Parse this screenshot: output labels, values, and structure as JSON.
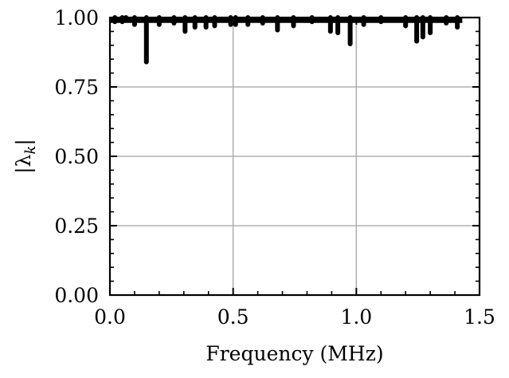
{
  "chart_data": {
    "type": "line",
    "title": "",
    "xlabel": "Frequency (MHz)",
    "ylabel": "|λk|",
    "ylabel_base": "|λ",
    "ylabel_sub": "k",
    "ylabel_tail": "|",
    "xlim": [
      0.0,
      1.5
    ],
    "ylim": [
      0.0,
      1.0
    ],
    "x_ticks": [
      0.0,
      0.5,
      1.0,
      1.5
    ],
    "x_tick_labels": [
      "0.0",
      "0.5",
      "1.0",
      "1.5"
    ],
    "y_ticks": [
      0.0,
      0.25,
      0.5,
      0.75,
      1.0
    ],
    "y_tick_labels": [
      "0.00",
      "0.25",
      "0.50",
      "0.75",
      "1.00"
    ],
    "grid": true,
    "line_color": "#000000",
    "grid_color": "#b0b0b0",
    "x_extent": [
      0.0,
      1.43
    ],
    "baseline": 0.995,
    "dips": [
      {
        "x": 0.02,
        "y": 0.985
      },
      {
        "x": 0.05,
        "y": 0.985
      },
      {
        "x": 0.065,
        "y": 0.99
      },
      {
        "x": 0.1,
        "y": 0.975
      },
      {
        "x": 0.148,
        "y": 0.84
      },
      {
        "x": 0.2,
        "y": 0.975
      },
      {
        "x": 0.26,
        "y": 0.98
      },
      {
        "x": 0.305,
        "y": 0.95
      },
      {
        "x": 0.345,
        "y": 0.965
      },
      {
        "x": 0.39,
        "y": 0.965
      },
      {
        "x": 0.425,
        "y": 0.97
      },
      {
        "x": 0.49,
        "y": 0.975
      },
      {
        "x": 0.51,
        "y": 0.975
      },
      {
        "x": 0.56,
        "y": 0.975
      },
      {
        "x": 0.62,
        "y": 0.98
      },
      {
        "x": 0.68,
        "y": 0.955
      },
      {
        "x": 0.745,
        "y": 0.97
      },
      {
        "x": 0.82,
        "y": 0.985
      },
      {
        "x": 0.895,
        "y": 0.95
      },
      {
        "x": 0.925,
        "y": 0.945
      },
      {
        "x": 0.975,
        "y": 0.905
      },
      {
        "x": 1.03,
        "y": 0.975
      },
      {
        "x": 1.1,
        "y": 0.985
      },
      {
        "x": 1.2,
        "y": 0.97
      },
      {
        "x": 1.245,
        "y": 0.915
      },
      {
        "x": 1.27,
        "y": 0.93
      },
      {
        "x": 1.3,
        "y": 0.945
      },
      {
        "x": 1.365,
        "y": 0.98
      },
      {
        "x": 1.41,
        "y": 0.965
      }
    ]
  }
}
